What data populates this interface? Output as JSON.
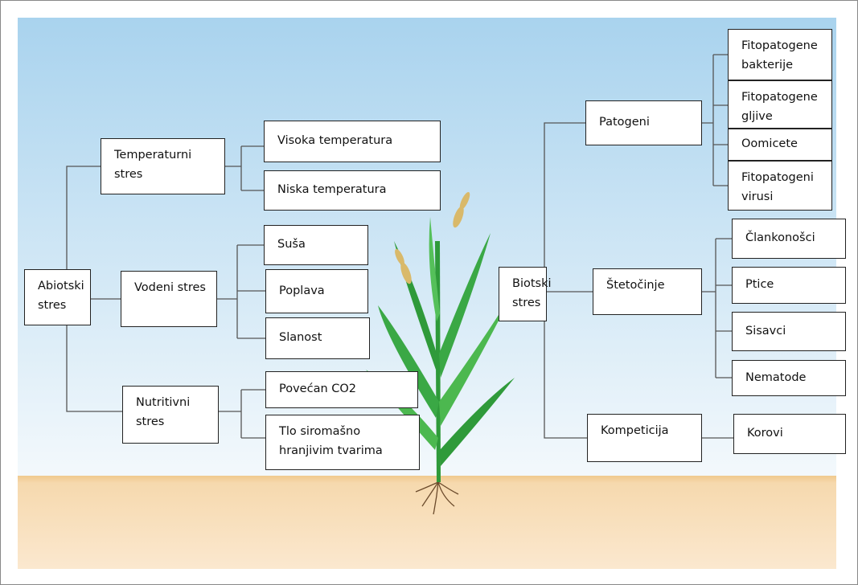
{
  "nodes": [
    {
      "label": "Abiotski stres"
    },
    {
      "label": "Temperaturni stres"
    },
    {
      "label": "Visoka temperatura"
    },
    {
      "label": "Niska temperatura"
    },
    {
      "label": "Vodeni stres"
    },
    {
      "label": "Suša"
    },
    {
      "label": "Poplava"
    },
    {
      "label": "Slanost"
    },
    {
      "label": "Nutritivni stres"
    },
    {
      "label": "Povećan CO2"
    },
    {
      "label": "Tlo siromašno hranjivim tvarima"
    },
    {
      "label": "Biotski stres"
    },
    {
      "label": "Patogeni"
    },
    {
      "label": "Fitopatogene bakterije"
    },
    {
      "label": "Fitopatogene gljive"
    },
    {
      "label": "Oomicete"
    },
    {
      "label": "Fitopatogeni virusi"
    },
    {
      "label": "Štetočinje"
    },
    {
      "label": "Člankonošci"
    },
    {
      "label": "Ptice"
    },
    {
      "label": "Sisavci"
    },
    {
      "label": "Nematode"
    },
    {
      "label": "Kompeticija"
    },
    {
      "label": "Korovi"
    }
  ]
}
